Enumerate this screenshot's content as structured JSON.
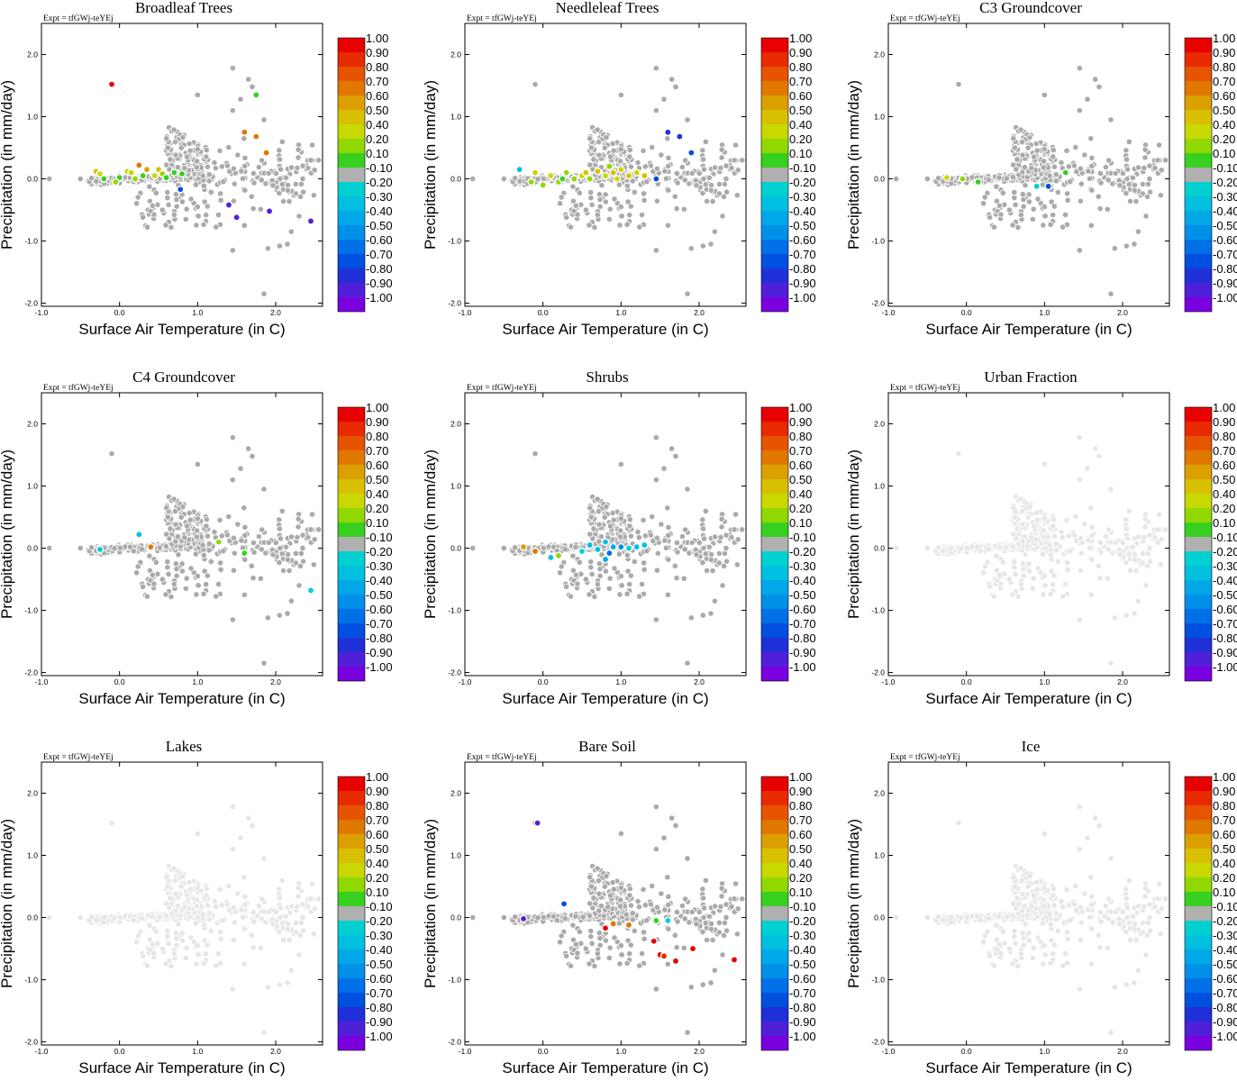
{
  "figure": {
    "expt_label": "Expt = tfGWj-teYEj",
    "xlabel": "Surface Air Temperature (in C)",
    "ylabel": "Precipitation (in mm/day)",
    "xlim": [
      -1.0,
      2.6
    ],
    "ylim": [
      -2.05,
      2.5
    ],
    "xticks": [
      -1.0,
      0.0,
      1.0,
      2.0
    ],
    "yticks": [
      -2.0,
      -1.0,
      0.0,
      1.0,
      2.0
    ],
    "xtick_labels": [
      "-1.0",
      "0.0",
      "1.0",
      "2.0"
    ],
    "ytick_labels": [
      "-2.0",
      "-1.0",
      "0.0",
      "1.0",
      "2.0"
    ],
    "neutral_color": "#aaaaaa",
    "faint_color": "#e6e6e6"
  },
  "colorbar": {
    "labels": [
      "1.00",
      "0.90",
      "0.80",
      "0.70",
      "0.60",
      "0.50",
      "0.40",
      "0.20",
      "0.10",
      "-0.10",
      "-0.20",
      "-0.30",
      "-0.40",
      "-0.50",
      "-0.60",
      "-0.70",
      "-0.80",
      "-0.90",
      "-1.00"
    ],
    "colors": [
      "#e80000",
      "#e82a00",
      "#e65400",
      "#e07800",
      "#dba000",
      "#d8c000",
      "#c8d800",
      "#90d800",
      "#38d020",
      "#b0b0b0",
      "#00d0d0",
      "#00c0e0",
      "#00a8e8",
      "#0090e8",
      "#0070e8",
      "#0050e0",
      "#2030d8",
      "#5020d8",
      "#7a00e0"
    ]
  },
  "chart_data": [
    {
      "type": "scatter",
      "title": "Broadleaf Trees",
      "highlight": "gray",
      "colored_points": [
        {
          "x": -0.1,
          "y": 1.52,
          "value": 1.0
        },
        {
          "x": 1.75,
          "y": 1.35,
          "value": 0.1
        },
        {
          "x": 1.6,
          "y": 0.75,
          "value": 0.7
        },
        {
          "x": 1.75,
          "y": 0.68,
          "value": 0.7
        },
        {
          "x": 1.88,
          "y": 0.42,
          "value": 0.7
        },
        {
          "x": 0.25,
          "y": 0.22,
          "value": 0.7
        },
        {
          "x": 0.35,
          "y": 0.15,
          "value": 0.6
        },
        {
          "x": -0.3,
          "y": 0.12,
          "value": 0.5
        },
        {
          "x": -0.25,
          "y": 0.08,
          "value": 0.4
        },
        {
          "x": 0.1,
          "y": 0.12,
          "value": 0.4
        },
        {
          "x": 0.5,
          "y": 0.15,
          "value": 0.5
        },
        {
          "x": 0.45,
          "y": 0.05,
          "value": 0.4
        },
        {
          "x": 0.55,
          "y": 0.08,
          "value": 0.2
        },
        {
          "x": 0.7,
          "y": 0.1,
          "value": 0.1
        },
        {
          "x": 0.8,
          "y": 0.08,
          "value": 0.1
        },
        {
          "x": -0.2,
          "y": 0.0,
          "value": 0.1
        },
        {
          "x": 0.0,
          "y": 0.02,
          "value": 0.1
        },
        {
          "x": 0.2,
          "y": 0.0,
          "value": 0.2
        },
        {
          "x": 0.3,
          "y": 0.05,
          "value": 0.1
        },
        {
          "x": 0.6,
          "y": 0.02,
          "value": 0.1
        },
        {
          "x": -0.05,
          "y": -0.05,
          "value": 0.2
        },
        {
          "x": 0.15,
          "y": 0.1,
          "value": 0.4
        },
        {
          "x": 0.78,
          "y": -0.17,
          "value": -0.7
        },
        {
          "x": 1.4,
          "y": -0.42,
          "value": -0.9
        },
        {
          "x": 1.5,
          "y": -0.62,
          "value": -0.9
        },
        {
          "x": 1.92,
          "y": -0.52,
          "value": -0.9
        },
        {
          "x": 2.45,
          "y": -0.68,
          "value": -0.9
        }
      ]
    },
    {
      "type": "scatter",
      "title": "Needleleaf Trees",
      "highlight": "gray",
      "colored_points": [
        {
          "x": 1.6,
          "y": 0.75,
          "value": -0.8
        },
        {
          "x": 1.75,
          "y": 0.68,
          "value": -0.8
        },
        {
          "x": 1.9,
          "y": 0.42,
          "value": -0.7
        },
        {
          "x": -0.3,
          "y": 0.15,
          "value": -0.3
        },
        {
          "x": -0.1,
          "y": 0.1,
          "value": 0.4
        },
        {
          "x": 0.1,
          "y": 0.05,
          "value": 0.4
        },
        {
          "x": 0.3,
          "y": 0.1,
          "value": 0.3
        },
        {
          "x": 0.5,
          "y": 0.05,
          "value": 0.4
        },
        {
          "x": 0.7,
          "y": 0.12,
          "value": 0.5
        },
        {
          "x": 0.9,
          "y": 0.1,
          "value": 0.5
        },
        {
          "x": 1.0,
          "y": 0.15,
          "value": 0.4
        },
        {
          "x": 1.1,
          "y": 0.05,
          "value": 0.5
        },
        {
          "x": 1.3,
          "y": 0.05,
          "value": 0.5
        },
        {
          "x": 1.45,
          "y": 0.0,
          "value": -0.7
        },
        {
          "x": 0.2,
          "y": -0.05,
          "value": 0.2
        },
        {
          "x": 0.4,
          "y": 0.0,
          "value": 0.3
        },
        {
          "x": 0.6,
          "y": 0.0,
          "value": 0.3
        },
        {
          "x": 0.8,
          "y": 0.05,
          "value": 0.4
        },
        {
          "x": 1.2,
          "y": 0.1,
          "value": 0.4
        },
        {
          "x": 0.0,
          "y": -0.1,
          "value": 0.3
        },
        {
          "x": -0.15,
          "y": -0.05,
          "value": 0.2
        },
        {
          "x": 0.55,
          "y": 0.1,
          "value": 0.5
        },
        {
          "x": 0.95,
          "y": 0.0,
          "value": 0.4
        },
        {
          "x": 0.85,
          "y": 0.2,
          "value": 0.3
        },
        {
          "x": 0.25,
          "y": 0.0,
          "value": 0.1
        }
      ]
    },
    {
      "type": "scatter",
      "title": "C3 Groundcover",
      "highlight": "gray",
      "colored_points": [
        {
          "x": -0.25,
          "y": 0.02,
          "value": 0.4
        },
        {
          "x": -0.05,
          "y": 0.0,
          "value": 0.2
        },
        {
          "x": 0.15,
          "y": -0.05,
          "value": 0.1
        },
        {
          "x": 1.27,
          "y": 0.1,
          "value": 0.1
        },
        {
          "x": 0.9,
          "y": -0.12,
          "value": -0.2
        },
        {
          "x": 1.05,
          "y": -0.12,
          "value": -0.7
        }
      ]
    },
    {
      "type": "scatter",
      "title": "C4 Groundcover",
      "highlight": "gray",
      "colored_points": [
        {
          "x": -0.25,
          "y": -0.02,
          "value": -0.2
        },
        {
          "x": 0.25,
          "y": 0.22,
          "value": -0.3
        },
        {
          "x": 0.4,
          "y": 0.02,
          "value": 0.7
        },
        {
          "x": 1.27,
          "y": 0.1,
          "value": 0.2
        },
        {
          "x": 1.6,
          "y": -0.08,
          "value": 0.1
        },
        {
          "x": 2.45,
          "y": -0.68,
          "value": -0.2
        }
      ]
    },
    {
      "type": "scatter",
      "title": "Shrubs",
      "highlight": "gray",
      "colored_points": [
        {
          "x": -0.25,
          "y": 0.02,
          "value": 0.6
        },
        {
          "x": -0.1,
          "y": -0.05,
          "value": 0.7
        },
        {
          "x": 0.1,
          "y": -0.15,
          "value": -0.3
        },
        {
          "x": 0.2,
          "y": -0.12,
          "value": 0.2
        },
        {
          "x": 0.8,
          "y": 0.1,
          "value": -0.3
        },
        {
          "x": 0.9,
          "y": 0.02,
          "value": -0.4
        },
        {
          "x": 1.0,
          "y": 0.02,
          "value": -0.5
        },
        {
          "x": 1.2,
          "y": 0.02,
          "value": -0.3
        },
        {
          "x": 1.3,
          "y": 0.05,
          "value": -0.3
        },
        {
          "x": 0.8,
          "y": -0.18,
          "value": -0.4
        },
        {
          "x": 0.6,
          "y": 0.05,
          "value": -0.3
        },
        {
          "x": 0.85,
          "y": -0.08,
          "value": -0.6
        },
        {
          "x": 1.1,
          "y": 0.0,
          "value": -0.2
        },
        {
          "x": 0.5,
          "y": -0.05,
          "value": -0.2
        },
        {
          "x": 0.7,
          "y": -0.02,
          "value": -0.3
        }
      ]
    },
    {
      "type": "scatter",
      "title": "Urban Fraction",
      "highlight": "none",
      "colored_points": []
    },
    {
      "type": "scatter",
      "title": "Lakes",
      "highlight": "none",
      "colored_points": []
    },
    {
      "type": "scatter",
      "title": "Bare Soil",
      "highlight": "gray",
      "colored_points": [
        {
          "x": -0.07,
          "y": 1.52,
          "value": -0.9
        },
        {
          "x": -0.25,
          "y": -0.02,
          "value": -0.9
        },
        {
          "x": 0.27,
          "y": 0.22,
          "value": -0.7
        },
        {
          "x": 0.8,
          "y": -0.17,
          "value": 1.0
        },
        {
          "x": 0.9,
          "y": -0.1,
          "value": 0.7
        },
        {
          "x": 1.1,
          "y": -0.12,
          "value": 0.7
        },
        {
          "x": 1.45,
          "y": -0.05,
          "value": 0.1
        },
        {
          "x": 1.6,
          "y": -0.05,
          "value": -0.2
        },
        {
          "x": 1.42,
          "y": -0.38,
          "value": 1.0
        },
        {
          "x": 1.5,
          "y": -0.6,
          "value": 1.0
        },
        {
          "x": 1.7,
          "y": -0.7,
          "value": 1.0
        },
        {
          "x": 1.92,
          "y": -0.5,
          "value": 1.0
        },
        {
          "x": 2.45,
          "y": -0.68,
          "value": 1.0
        },
        {
          "x": 1.55,
          "y": -0.62,
          "value": 0.9
        }
      ]
    },
    {
      "type": "scatter",
      "title": "Ice",
      "highlight": "none",
      "colored_points": []
    }
  ]
}
